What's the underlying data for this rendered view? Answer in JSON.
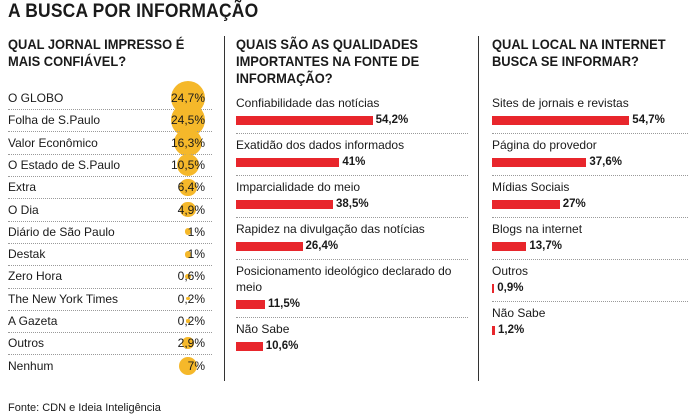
{
  "title": "A BUSCA POR INFORMAÇÃO",
  "source": "Fonte: CDN e Ideia Inteligência",
  "chart_data": [
    {
      "type": "bubble",
      "title_lines": [
        "QUAL JORNAL IMPRESSO É",
        "MAIS CONFIÁVEL?"
      ],
      "categories": [
        "O GLOBO",
        "Folha de S.Paulo",
        "Valor Econômico",
        "O Estado de S.Paulo",
        "Extra",
        "O Dia",
        "Diário de São Paulo",
        "Destak",
        "Zero Hora",
        "The New York Times",
        "A Gazeta",
        "Outros",
        "Nenhum"
      ],
      "values": [
        24.7,
        24.5,
        16.3,
        10.5,
        6.4,
        4.9,
        1,
        1,
        0.6,
        0.2,
        0.2,
        2.9,
        7
      ],
      "value_labels": [
        "24,7%",
        "24,5%",
        "16,3%",
        "10,5%",
        "6,4%",
        "4,9%",
        "1%",
        "1%",
        "0,6%",
        "0,2%",
        "0,2%",
        "2,9%",
        "7%"
      ],
      "color": "#f5b82a"
    },
    {
      "type": "bar",
      "title_lines": [
        "QUAIS SÃO AS QUALIDADES",
        "IMPORTANTES NA FONTE DE",
        "INFORMAÇÃO?"
      ],
      "categories": [
        [
          "Confiabilidade das notícias"
        ],
        [
          "Exatidão dos dados informados"
        ],
        [
          "Imparcialidade do meio"
        ],
        [
          "Rapidez na divulgação das notícias"
        ],
        [
          "Posicionamento ideológico declarado do",
          "meio"
        ],
        [
          "Não Sabe"
        ]
      ],
      "values": [
        54.2,
        41,
        38.5,
        26.4,
        11.5,
        10.6
      ],
      "value_labels": [
        "54,2%",
        "41%",
        "38,5%",
        "26,4%",
        "11,5%",
        "10,6%"
      ],
      "color": "#e8262c"
    },
    {
      "type": "bar",
      "title_lines": [
        "QUAL LOCAL NA INTERNET",
        "BUSCA SE INFORMAR?"
      ],
      "categories": [
        [
          "Sites de jornais e revistas"
        ],
        [
          "Página do provedor"
        ],
        [
          "Mídias Sociais"
        ],
        [
          "Blogs na internet"
        ],
        [
          "Outros"
        ],
        [
          "Não Sabe"
        ]
      ],
      "values": [
        54.7,
        37.6,
        27,
        13.7,
        0.9,
        1.2
      ],
      "value_labels": [
        "54,7%",
        "37,6%",
        "27%",
        "13,7%",
        "0,9%",
        "1,2%"
      ],
      "color": "#e8262c"
    }
  ]
}
